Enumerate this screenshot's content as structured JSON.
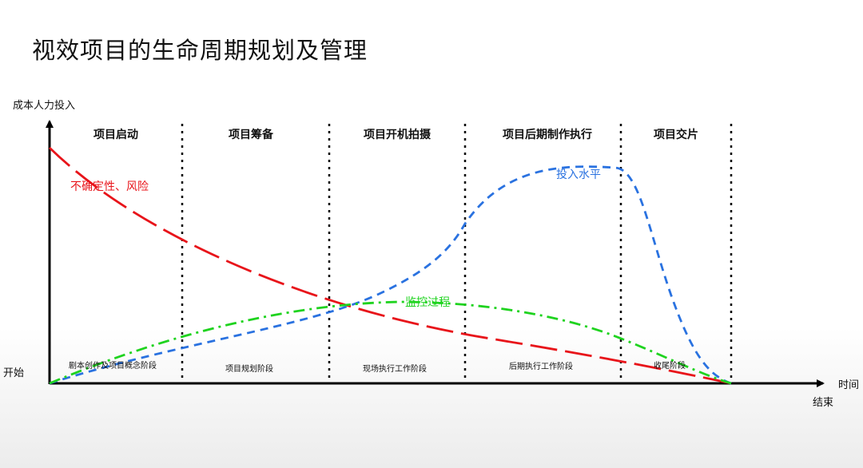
{
  "title": "视效项目的生命周期规划及管理",
  "axes": {
    "y_label": "成本人力投入",
    "x_label": "时间",
    "origin_label": "开始",
    "end_label": "结束"
  },
  "phases": [
    "项目启动",
    "项目筹备",
    "项目开机拍摄",
    "项目后期制作执行",
    "项目交片"
  ],
  "stages": [
    "剧本创作及项目概念阶段",
    "项目规划阶段",
    "现场执行工作阶段",
    "后期执行工作阶段",
    "收尾阶段"
  ],
  "curves": {
    "risk": {
      "label": "不确定性、风险",
      "color": "#e8141a"
    },
    "investment": {
      "label": "投入水平",
      "color": "#2a72e0"
    },
    "monitoring": {
      "label": "监控过程",
      "color": "#1fd31f"
    }
  }
}
